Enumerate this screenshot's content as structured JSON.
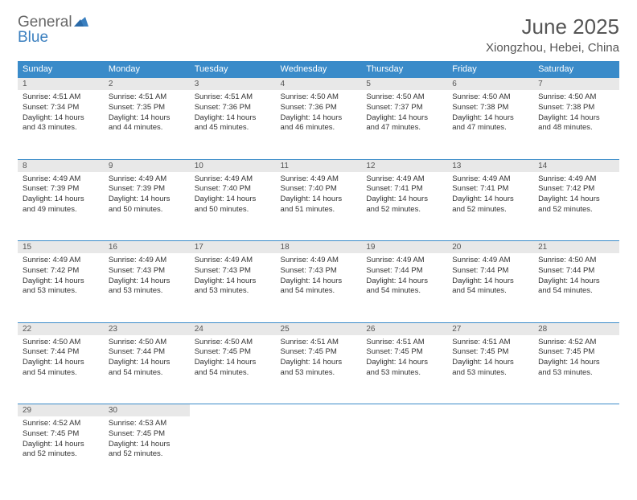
{
  "logo": {
    "part1": "General",
    "part2": "Blue"
  },
  "title": "June 2025",
  "location": "Xiongzhou, Hebei, China",
  "colors": {
    "header_bg": "#3a8bc9",
    "header_text": "#ffffff",
    "daynum_bg": "#e8e8e8",
    "border": "#3a8bc9",
    "logo_gray": "#666666",
    "logo_blue": "#3a7fbf"
  },
  "weekdays": [
    "Sunday",
    "Monday",
    "Tuesday",
    "Wednesday",
    "Thursday",
    "Friday",
    "Saturday"
  ],
  "weeks": [
    [
      {
        "n": "1",
        "sr": "4:51 AM",
        "ss": "7:34 PM",
        "dl": "14 hours and 43 minutes."
      },
      {
        "n": "2",
        "sr": "4:51 AM",
        "ss": "7:35 PM",
        "dl": "14 hours and 44 minutes."
      },
      {
        "n": "3",
        "sr": "4:51 AM",
        "ss": "7:36 PM",
        "dl": "14 hours and 45 minutes."
      },
      {
        "n": "4",
        "sr": "4:50 AM",
        "ss": "7:36 PM",
        "dl": "14 hours and 46 minutes."
      },
      {
        "n": "5",
        "sr": "4:50 AM",
        "ss": "7:37 PM",
        "dl": "14 hours and 47 minutes."
      },
      {
        "n": "6",
        "sr": "4:50 AM",
        "ss": "7:38 PM",
        "dl": "14 hours and 47 minutes."
      },
      {
        "n": "7",
        "sr": "4:50 AM",
        "ss": "7:38 PM",
        "dl": "14 hours and 48 minutes."
      }
    ],
    [
      {
        "n": "8",
        "sr": "4:49 AM",
        "ss": "7:39 PM",
        "dl": "14 hours and 49 minutes."
      },
      {
        "n": "9",
        "sr": "4:49 AM",
        "ss": "7:39 PM",
        "dl": "14 hours and 50 minutes."
      },
      {
        "n": "10",
        "sr": "4:49 AM",
        "ss": "7:40 PM",
        "dl": "14 hours and 50 minutes."
      },
      {
        "n": "11",
        "sr": "4:49 AM",
        "ss": "7:40 PM",
        "dl": "14 hours and 51 minutes."
      },
      {
        "n": "12",
        "sr": "4:49 AM",
        "ss": "7:41 PM",
        "dl": "14 hours and 52 minutes."
      },
      {
        "n": "13",
        "sr": "4:49 AM",
        "ss": "7:41 PM",
        "dl": "14 hours and 52 minutes."
      },
      {
        "n": "14",
        "sr": "4:49 AM",
        "ss": "7:42 PM",
        "dl": "14 hours and 52 minutes."
      }
    ],
    [
      {
        "n": "15",
        "sr": "4:49 AM",
        "ss": "7:42 PM",
        "dl": "14 hours and 53 minutes."
      },
      {
        "n": "16",
        "sr": "4:49 AM",
        "ss": "7:43 PM",
        "dl": "14 hours and 53 minutes."
      },
      {
        "n": "17",
        "sr": "4:49 AM",
        "ss": "7:43 PM",
        "dl": "14 hours and 53 minutes."
      },
      {
        "n": "18",
        "sr": "4:49 AM",
        "ss": "7:43 PM",
        "dl": "14 hours and 54 minutes."
      },
      {
        "n": "19",
        "sr": "4:49 AM",
        "ss": "7:44 PM",
        "dl": "14 hours and 54 minutes."
      },
      {
        "n": "20",
        "sr": "4:49 AM",
        "ss": "7:44 PM",
        "dl": "14 hours and 54 minutes."
      },
      {
        "n": "21",
        "sr": "4:50 AM",
        "ss": "7:44 PM",
        "dl": "14 hours and 54 minutes."
      }
    ],
    [
      {
        "n": "22",
        "sr": "4:50 AM",
        "ss": "7:44 PM",
        "dl": "14 hours and 54 minutes."
      },
      {
        "n": "23",
        "sr": "4:50 AM",
        "ss": "7:44 PM",
        "dl": "14 hours and 54 minutes."
      },
      {
        "n": "24",
        "sr": "4:50 AM",
        "ss": "7:45 PM",
        "dl": "14 hours and 54 minutes."
      },
      {
        "n": "25",
        "sr": "4:51 AM",
        "ss": "7:45 PM",
        "dl": "14 hours and 53 minutes."
      },
      {
        "n": "26",
        "sr": "4:51 AM",
        "ss": "7:45 PM",
        "dl": "14 hours and 53 minutes."
      },
      {
        "n": "27",
        "sr": "4:51 AM",
        "ss": "7:45 PM",
        "dl": "14 hours and 53 minutes."
      },
      {
        "n": "28",
        "sr": "4:52 AM",
        "ss": "7:45 PM",
        "dl": "14 hours and 53 minutes."
      }
    ],
    [
      {
        "n": "29",
        "sr": "4:52 AM",
        "ss": "7:45 PM",
        "dl": "14 hours and 52 minutes."
      },
      {
        "n": "30",
        "sr": "4:53 AM",
        "ss": "7:45 PM",
        "dl": "14 hours and 52 minutes."
      },
      null,
      null,
      null,
      null,
      null
    ]
  ],
  "labels": {
    "sunrise": "Sunrise:",
    "sunset": "Sunset:",
    "daylight": "Daylight:"
  }
}
